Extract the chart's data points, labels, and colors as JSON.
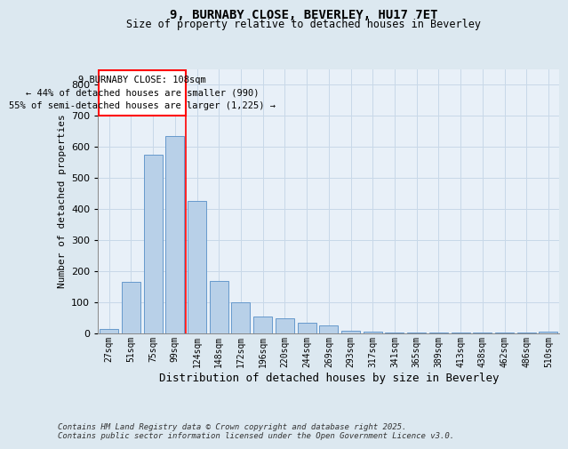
{
  "title_line1": "9, BURNABY CLOSE, BEVERLEY, HU17 7ET",
  "title_line2": "Size of property relative to detached houses in Beverley",
  "xlabel": "Distribution of detached houses by size in Beverley",
  "ylabel": "Number of detached properties",
  "categories": [
    "27sqm",
    "51sqm",
    "75sqm",
    "99sqm",
    "124sqm",
    "148sqm",
    "172sqm",
    "196sqm",
    "220sqm",
    "244sqm",
    "269sqm",
    "293sqm",
    "317sqm",
    "341sqm",
    "365sqm",
    "389sqm",
    "413sqm",
    "438sqm",
    "462sqm",
    "486sqm",
    "510sqm"
  ],
  "values": [
    15,
    165,
    575,
    635,
    425,
    170,
    100,
    55,
    50,
    35,
    25,
    10,
    5,
    4,
    4,
    4,
    4,
    4,
    2,
    2,
    5
  ],
  "bar_color": "#b8d0e8",
  "bar_edge_color": "#6699cc",
  "grid_color": "#c8d8e8",
  "annotation_box_text": "9 BURNABY CLOSE: 108sqm\n← 44% of detached houses are smaller (990)\n55% of semi-detached houses are larger (1,225) →",
  "annotation_box_color": "red",
  "vline_x_index": 3.5,
  "ylim": [
    0,
    850
  ],
  "yticks": [
    0,
    100,
    200,
    300,
    400,
    500,
    600,
    700,
    800
  ],
  "footer_text": "Contains HM Land Registry data © Crown copyright and database right 2025.\nContains public sector information licensed under the Open Government Licence v3.0.",
  "bg_color": "#dce8f0",
  "plot_bg_color": "#e8f0f8"
}
